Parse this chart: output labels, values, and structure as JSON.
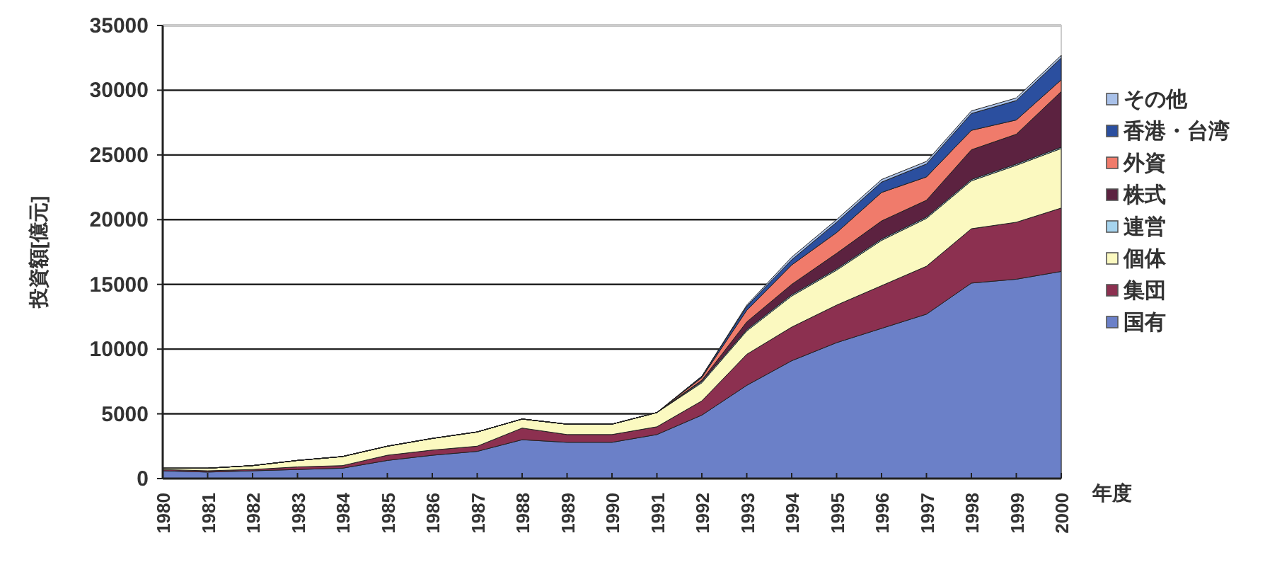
{
  "chart_data": {
    "type": "area",
    "stacked": true,
    "ylabel": "投資額[億元]",
    "xlabel": "年度",
    "categories": [
      "1980",
      "1981",
      "1982",
      "1983",
      "1984",
      "1985",
      "1986",
      "1987",
      "1988",
      "1989",
      "1990",
      "1991",
      "1992",
      "1993",
      "1994",
      "1995",
      "1996",
      "1997",
      "1998",
      "1999",
      "2000"
    ],
    "ylim": [
      0,
      35000
    ],
    "yticks": [
      0,
      5000,
      10000,
      15000,
      20000,
      25000,
      30000,
      35000
    ],
    "grid": "y",
    "legend": "right",
    "series": [
      {
        "name": "国有",
        "color": "#6b80c8",
        "values": [
          600,
          500,
          600,
          700,
          800,
          1400,
          1800,
          2100,
          3000,
          2800,
          2800,
          3400,
          4900,
          7200,
          9100,
          10500,
          11600,
          12700,
          15100,
          15400,
          16000
        ]
      },
      {
        "name": "集団",
        "color": "#8c3050",
        "values": [
          100,
          100,
          100,
          200,
          200,
          400,
          400,
          400,
          900,
          600,
          600,
          600,
          1100,
          2400,
          2600,
          2900,
          3300,
          3700,
          4200,
          4400,
          4900
        ]
      },
      {
        "name": "個体",
        "color": "#fbf9c0",
        "values": [
          100,
          200,
          300,
          500,
          700,
          700,
          900,
          1100,
          700,
          800,
          800,
          1100,
          1400,
          1800,
          2400,
          2700,
          3500,
          3700,
          3700,
          4400,
          4600
        ]
      },
      {
        "name": "連営",
        "color": "#a6d4ee",
        "values": [
          0,
          0,
          0,
          0,
          0,
          0,
          0,
          0,
          0,
          0,
          0,
          0,
          100,
          100,
          100,
          100,
          100,
          100,
          100,
          100,
          100
        ]
      },
      {
        "name": "株式",
        "color": "#5c2240",
        "values": [
          0,
          0,
          0,
          0,
          0,
          0,
          0,
          0,
          0,
          0,
          0,
          0,
          100,
          600,
          800,
          1200,
          1400,
          1300,
          2300,
          2300,
          4300
        ]
      },
      {
        "name": "外資",
        "color": "#f07b6b",
        "values": [
          0,
          0,
          0,
          0,
          0,
          0,
          0,
          0,
          0,
          0,
          0,
          0,
          200,
          900,
          1500,
          1600,
          2200,
          1800,
          1500,
          1100,
          900
        ]
      },
      {
        "name": "香港・台湾",
        "color": "#2b4f9f",
        "values": [
          0,
          0,
          0,
          0,
          0,
          0,
          0,
          0,
          0,
          0,
          0,
          0,
          100,
          300,
          400,
          800,
          800,
          1000,
          1300,
          1500,
          1700
        ]
      },
      {
        "name": "その他",
        "color": "#a9c1e9",
        "values": [
          0,
          0,
          0,
          0,
          0,
          0,
          0,
          0,
          0,
          0,
          0,
          0,
          0,
          100,
          200,
          200,
          200,
          200,
          200,
          200,
          200
        ]
      }
    ]
  }
}
